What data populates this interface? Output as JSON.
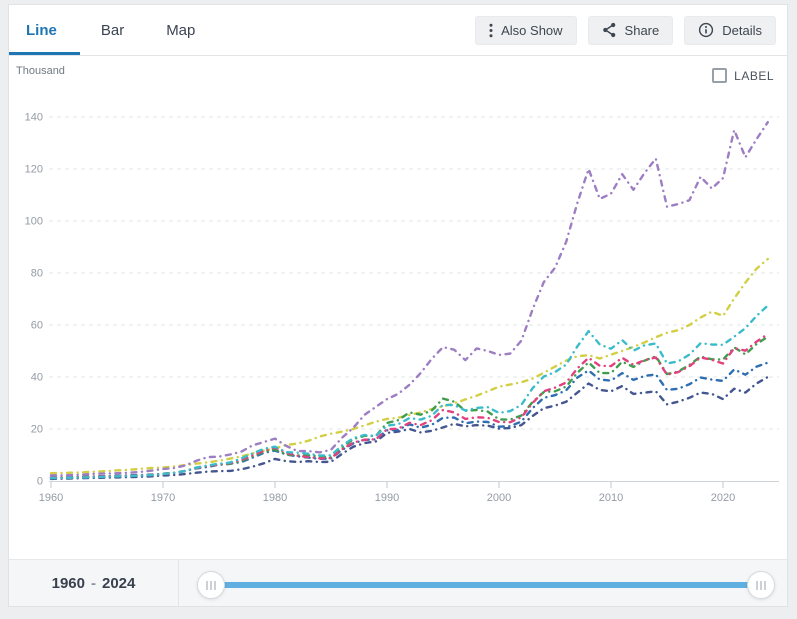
{
  "header": {
    "tabs": [
      {
        "label": "Line",
        "active": true
      },
      {
        "label": "Bar",
        "active": false
      },
      {
        "label": "Map",
        "active": false
      }
    ],
    "buttons": [
      {
        "label": "Also Show",
        "icon": "kebab-icon"
      },
      {
        "label": "Share",
        "icon": "share-icon"
      },
      {
        "label": "Details",
        "icon": "info-icon"
      }
    ]
  },
  "chart": {
    "unit_label": "Thousand",
    "label_checkbox": {
      "label": "LABEL",
      "checked": false
    }
  },
  "slider": {
    "start_year": "1960",
    "separator": "-",
    "end_year": "2024"
  },
  "theme": {
    "accent_blue": "#1f76b4",
    "slider_track_blue": "#5fafe0",
    "grid_line": "#e2e5e8",
    "axis_line": "#cfd4d9",
    "tick_line": "#c3c8cd",
    "axis_text": "#949ba4"
  },
  "chart_data": {
    "type": "line",
    "title": "",
    "unit": "Thousand",
    "xlabel": "",
    "ylabel": "Thousand",
    "ylim": [
      0,
      145
    ],
    "yticks": [
      0,
      20,
      40,
      60,
      80,
      100,
      120,
      140
    ],
    "xticks": [
      1960,
      1970,
      1980,
      1990,
      2000,
      2010,
      2020
    ],
    "grid": "dashed-horizontal",
    "legend": "none",
    "line_style": "dash-dot",
    "x_years": [
      1960,
      1961,
      1962,
      1963,
      1964,
      1965,
      1966,
      1967,
      1968,
      1969,
      1970,
      1971,
      1972,
      1973,
      1974,
      1975,
      1976,
      1977,
      1978,
      1979,
      1980,
      1981,
      1982,
      1983,
      1984,
      1985,
      1986,
      1987,
      1988,
      1989,
      1990,
      1991,
      1992,
      1993,
      1994,
      1995,
      1996,
      1997,
      1998,
      1999,
      2000,
      2001,
      2002,
      2003,
      2004,
      2005,
      2006,
      2007,
      2008,
      2009,
      2010,
      2011,
      2012,
      2013,
      2014,
      2015,
      2016,
      2017,
      2018,
      2019,
      2020,
      2021,
      2022,
      2023,
      2024
    ],
    "series": [
      {
        "name": "yellow-green-series",
        "color": "#d3cf45",
        "values": [
          3.0,
          3.1,
          3.2,
          3.4,
          3.6,
          3.8,
          4.1,
          4.3,
          4.7,
          5.0,
          5.2,
          5.6,
          6.1,
          6.7,
          7.2,
          7.8,
          8.6,
          9.5,
          10.6,
          11.7,
          12.5,
          13.9,
          14.4,
          15.5,
          17.1,
          18.2,
          19.0,
          20.0,
          21.4,
          22.8,
          23.9,
          24.3,
          25.4,
          26.4,
          27.7,
          28.7,
          29.9,
          31.4,
          32.8,
          34.5,
          36.3,
          37.1,
          38.0,
          39.4,
          41.6,
          44.0,
          46.3,
          48.0,
          48.4,
          47.1,
          48.6,
          50.0,
          51.6,
          53.3,
          55.3,
          57.0,
          58.0,
          60.0,
          62.9,
          65.1,
          63.5,
          70.2,
          76.3,
          81.7,
          85.4
        ]
      },
      {
        "name": "navy-series",
        "color": "#44568f",
        "values": [
          0.8,
          0.9,
          1.0,
          1.1,
          1.2,
          1.3,
          1.4,
          1.5,
          1.6,
          1.8,
          2.1,
          2.3,
          2.7,
          3.2,
          3.6,
          3.8,
          3.9,
          4.5,
          5.5,
          6.8,
          8.5,
          7.6,
          7.3,
          7.6,
          7.3,
          7.4,
          10.5,
          13.2,
          14.6,
          15.2,
          18.5,
          19.0,
          20.0,
          18.7,
          19.3,
          20.6,
          22.0,
          21.0,
          21.5,
          21.3,
          20.1,
          20.4,
          21.5,
          25.0,
          28.0,
          29.0,
          30.5,
          34.0,
          37.5,
          35.0,
          34.5,
          36.5,
          33.5,
          34.0,
          34.5,
          29.5,
          30.5,
          32.0,
          34.0,
          33.5,
          31.5,
          35.5,
          34.0,
          37.5,
          40.0
        ]
      },
      {
        "name": "blue-series",
        "color": "#2f6eb0",
        "values": [
          1.3,
          1.4,
          1.5,
          1.6,
          1.8,
          1.9,
          2.0,
          2.2,
          2.3,
          2.5,
          2.8,
          3.1,
          3.8,
          4.9,
          5.4,
          6.3,
          6.6,
          7.3,
          9.0,
          10.8,
          11.7,
          10.2,
          9.5,
          9.0,
          8.5,
          8.7,
          12.0,
          14.5,
          15.8,
          16.0,
          19.5,
          19.7,
          21.8,
          20.5,
          21.6,
          24.3,
          24.4,
          22.2,
          22.9,
          22.7,
          20.9,
          21.1,
          22.9,
          28.0,
          32.0,
          33.0,
          34.9,
          39.8,
          42.5,
          39.0,
          38.6,
          41.5,
          38.9,
          40.4,
          41.0,
          35.0,
          35.5,
          37.2,
          39.8,
          39.0,
          38.5,
          42.9,
          40.9,
          44.0,
          45.5
        ]
      },
      {
        "name": "green-series",
        "color": "#3f9e4e",
        "values": [
          1.3,
          1.4,
          1.5,
          1.6,
          1.7,
          1.8,
          1.9,
          2.0,
          2.2,
          2.4,
          2.8,
          3.2,
          3.9,
          5.2,
          5.9,
          6.2,
          6.6,
          7.7,
          9.5,
          11.3,
          12.1,
          10.2,
          9.9,
          9.9,
          9.4,
          9.1,
          13.0,
          16.1,
          17.4,
          17.3,
          22.3,
          23.4,
          26.4,
          25.5,
          27.1,
          31.7,
          30.5,
          27.0,
          27.3,
          26.7,
          23.7,
          23.6,
          25.2,
          30.4,
          34.2,
          34.5,
          36.3,
          41.6,
          45.6,
          41.5,
          41.5,
          45.9,
          43.9,
          46.3,
          48.0,
          41.1,
          42.1,
          44.6,
          47.9,
          46.8,
          46.7,
          51.4,
          48.7,
          52.7,
          55.5
        ]
      },
      {
        "name": "pink-series",
        "color": "#e1417e",
        "values": [
          1.3,
          1.4,
          1.4,
          1.5,
          1.7,
          1.8,
          1.9,
          2.0,
          2.2,
          2.4,
          2.7,
          3.1,
          3.9,
          5.0,
          5.8,
          6.4,
          6.9,
          8.1,
          9.9,
          11.6,
          12.9,
          10.8,
          9.7,
          9.2,
          8.7,
          8.8,
          12.2,
          14.8,
          15.9,
          16.0,
          19.9,
          20.1,
          22.4,
          21.5,
          23.4,
          27.3,
          26.4,
          23.9,
          24.5,
          24.3,
          22.7,
          22.6,
          24.5,
          30.0,
          34.5,
          35.9,
          37.9,
          43.3,
          47.4,
          44.3,
          44.2,
          47.4,
          44.7,
          46.5,
          47.5,
          40.9,
          41.9,
          44.1,
          47.5,
          46.6,
          45.2,
          51.1,
          50.1,
          53.6,
          56.5
        ]
      },
      {
        "name": "cyan-series",
        "color": "#3bbcca",
        "values": [
          1.1,
          1.2,
          1.3,
          1.4,
          1.5,
          1.7,
          1.8,
          1.9,
          2.1,
          2.3,
          2.7,
          3.1,
          3.9,
          5.1,
          6.0,
          6.6,
          7.1,
          8.7,
          10.6,
          12.4,
          13.2,
          11.1,
          10.9,
          10.5,
          9.8,
          9.9,
          13.7,
          16.5,
          17.7,
          17.3,
          21.3,
          21.8,
          24.2,
          23.6,
          25.1,
          29.3,
          29.2,
          27.1,
          28.1,
          28.4,
          26.2,
          26.9,
          29.3,
          35.7,
          40.2,
          41.9,
          44.8,
          51.8,
          57.6,
          52.5,
          50.9,
          54.2,
          50.1,
          52.2,
          52.9,
          45.2,
          46.0,
          48.6,
          53.0,
          52.5,
          52.4,
          55.5,
          58.8,
          63.5,
          67.5
        ]
      },
      {
        "name": "purple-series",
        "color": "#9d7ec2",
        "values": [
          2.2,
          2.2,
          2.3,
          2.5,
          2.8,
          2.9,
          3.0,
          3.2,
          3.5,
          4.0,
          4.6,
          5.0,
          6.0,
          7.8,
          9.2,
          9.4,
          10.2,
          11.3,
          13.7,
          15.0,
          16.3,
          13.5,
          11.5,
          11.5,
          11.0,
          12.0,
          16.7,
          20.5,
          25.5,
          28.5,
          31.5,
          33.5,
          37.0,
          41.5,
          47.0,
          51.5,
          50.5,
          46.5,
          51.0,
          50.0,
          48.5,
          49.0,
          54.0,
          66.0,
          76.5,
          82.0,
          92.0,
          107.0,
          120.0,
          108.5,
          110.5,
          118.0,
          112.0,
          118.5,
          124.0,
          105.5,
          106.5,
          108.0,
          117.0,
          112.5,
          116.5,
          135.0,
          124.5,
          131.5,
          138.0
        ]
      }
    ]
  }
}
